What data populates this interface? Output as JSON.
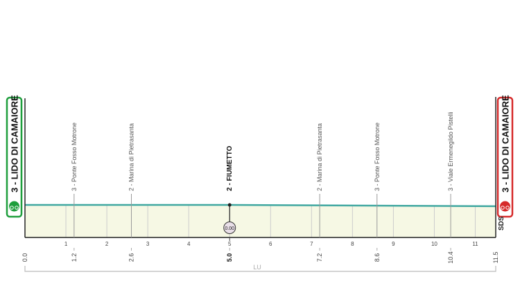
{
  "chart_data": {
    "type": "area",
    "title": "",
    "xlabel": "",
    "ylabel": "",
    "xlim": [
      0,
      11.5
    ],
    "x_ticks": [
      1,
      2,
      3,
      4,
      5,
      6,
      7,
      8,
      9,
      10,
      11
    ],
    "profile": {
      "x": [
        0,
        5,
        11.5
      ],
      "relative_height": [
        1.0,
        1.0,
        0.96
      ]
    },
    "start": {
      "label": "3 - LIDO DI CAMAIORE",
      "km": "0.0",
      "color": "#1e9e3c"
    },
    "finish": {
      "label": "3 - LIDO DI CAMAIORE",
      "km": "11.5",
      "color": "#d62a2a"
    },
    "waypoints": [
      {
        "km": "1.2",
        "label": "3 - Ponte Fosso Motrone",
        "bold": false
      },
      {
        "km": "2.6",
        "label": "2 - Marina di Pietrasanta",
        "bold": false
      },
      {
        "km": "5.0",
        "label": "2 - FIUMETTO",
        "bold": true,
        "intermediate_time": "0.00"
      },
      {
        "km": "7.2",
        "label": "2 - Marina di Pietrasanta",
        "bold": false
      },
      {
        "km": "8.6",
        "label": "3 - Ponte Fosso Motrone",
        "bold": false
      },
      {
        "km": "10.4",
        "label": "3 - Viale Ermenegildo Pistelli",
        "bold": false
      }
    ],
    "region_label": "LU",
    "logo": "SDS",
    "colors": {
      "line": "#3fa7a0",
      "fill": "#f6f8e4"
    }
  }
}
